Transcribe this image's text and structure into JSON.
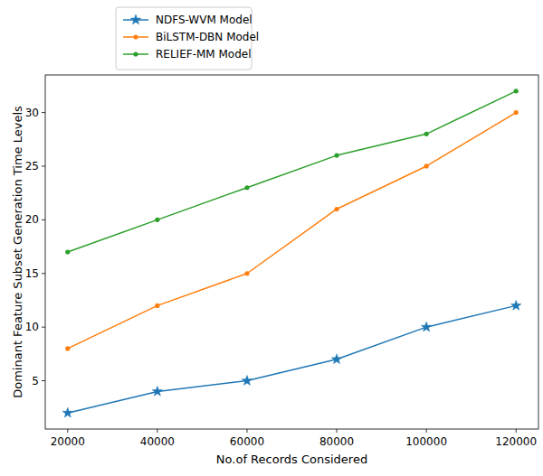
{
  "chart_data": {
    "type": "line",
    "x_label": "No.of Records Considered",
    "y_label": "Dominant Feature Subset Generation Time Levels",
    "x": [
      20000,
      40000,
      60000,
      80000,
      100000,
      120000
    ],
    "series": [
      {
        "name": "NDFS-WVM Model",
        "color": "#1f77b4",
        "marker": "star",
        "values": [
          2,
          4,
          5,
          7,
          10,
          12
        ]
      },
      {
        "name": "BiLSTM-DBN Model",
        "color": "#ff7f0e",
        "marker": "point",
        "values": [
          8,
          12,
          15,
          21,
          25,
          30
        ]
      },
      {
        "name": "RELIEF-MM Model",
        "color": "#2ca02c",
        "marker": "point",
        "values": [
          17,
          20,
          23,
          26,
          28,
          32
        ]
      }
    ],
    "xlim": [
      15000,
      125000
    ],
    "ylim": [
      0.5,
      33.5
    ],
    "xticks": [
      20000,
      40000,
      60000,
      80000,
      100000,
      120000
    ],
    "yticks": [
      5,
      10,
      15,
      20,
      25,
      30
    ],
    "grid": false,
    "legend": "top"
  }
}
